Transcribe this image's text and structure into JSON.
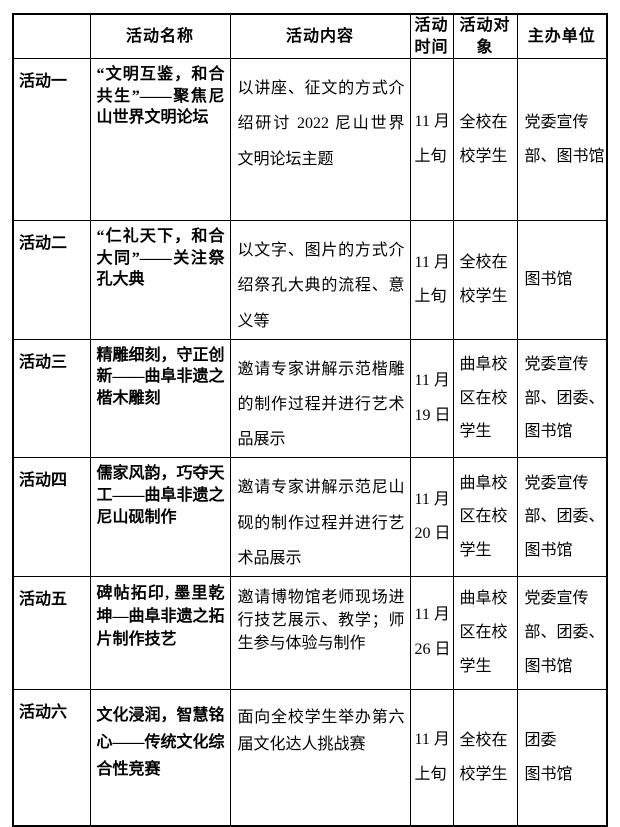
{
  "document": {
    "background_color": "#ffffff",
    "border_color": "#000000",
    "text_color": "#000000"
  },
  "table": {
    "headers": [
      "",
      "活动名称",
      "活动内容",
      "活动\n时间",
      "活动对\n象",
      "主办单位"
    ],
    "rows": [
      {
        "label": "活动一",
        "name": "“文明互鉴，和合共生”——聚焦尼山世界文明论坛",
        "content": "以讲座、征文的方式介绍研讨 2022 尼山世界文明论坛主题",
        "time": "11 月\n上旬",
        "target": "全校在\n校学生",
        "organizer": "党委宣传\n部、图书馆"
      },
      {
        "label": "活动二",
        "name": "“仁礼天下，和合大同”——关注祭孔大典",
        "content": "以文字、图片的方式介绍祭孔大典的流程、意义等",
        "time": "11 月\n上旬",
        "target": "全校在\n校学生",
        "organizer": "图书馆"
      },
      {
        "label": "活动三",
        "name": "精雕细刻，守正创新——曲阜非遗之楷木雕刻",
        "content": "邀请专家讲解示范楷雕的制作过程并进行艺术品展示",
        "time": "11 月\n19 日",
        "target": "曲阜校\n区在校\n学生",
        "organizer": "党委宣传\n部、团委、\n图书馆"
      },
      {
        "label": "活动四",
        "name": "儒家风韵，巧夺天工——曲阜非遗之尼山砚制作",
        "content": "邀请专家讲解示范尼山砚的制作过程并进行艺术品展示",
        "time": "11 月\n20 日",
        "target": "曲阜校\n区在校\n学生",
        "organizer": "党委宣传\n部、团委、\n图书馆"
      },
      {
        "label": "活动五",
        "name": "碑帖拓印, 墨里乾坤—曲阜非遗之拓片制作技艺",
        "content": "邀请博物馆老师现场进行技艺展示、教学；师生参与体验与制作",
        "time": "11 月\n26 日",
        "target": "曲阜校\n区在校\n学生",
        "organizer": "党委宣传\n部、团委、\n图书馆"
      },
      {
        "label": "活动六",
        "name": "文化浸润，智慧铭心——传统文化综合性竞赛",
        "content": "面向全校学生举办第六届文化达人挑战赛",
        "time": "11 月\n上旬",
        "target": "全校在\n校学生",
        "organizer": "团委\n图书馆"
      }
    ]
  }
}
